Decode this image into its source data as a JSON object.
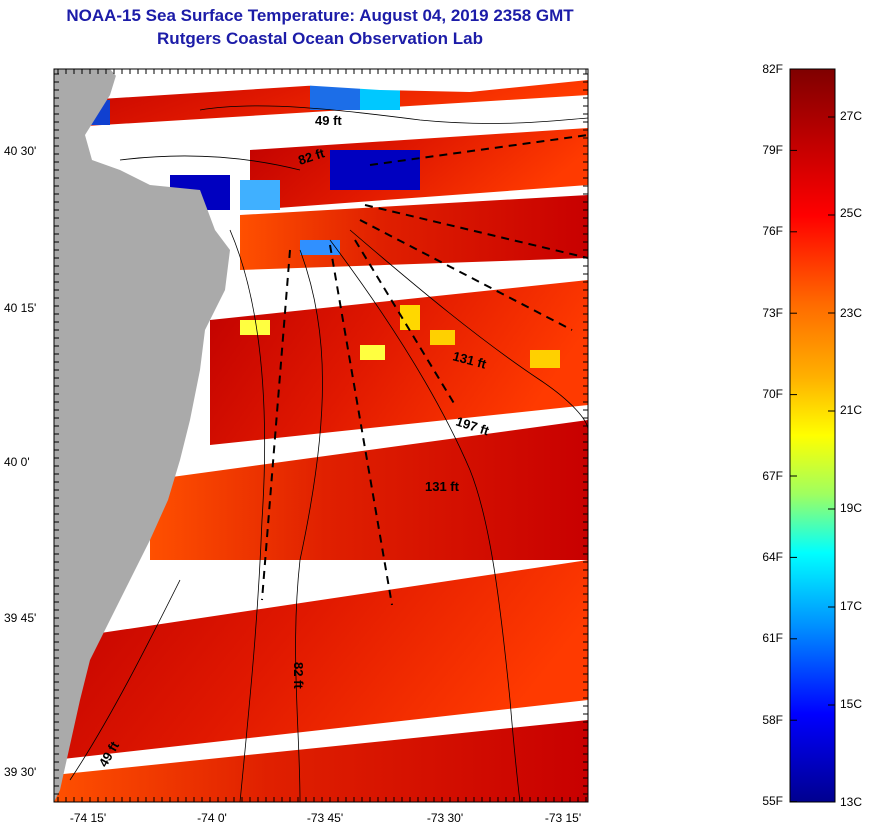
{
  "title_line1": "NOAA-15 Sea Surface Temperature:  August 04, 2019 2358 GMT",
  "title_line2": "Rutgers Coastal Ocean Observation Lab",
  "axes": {
    "lon_ticks": [
      "-74 15'",
      "-74 0'",
      "-73 45'",
      "-73 30'",
      "-73 15'"
    ],
    "lat_ticks": [
      "40 30'",
      "40 15'",
      "40 0'",
      "39 45'",
      "39 30'"
    ]
  },
  "depth_labels": [
    "49 ft",
    "82 ft",
    "131 ft",
    "197 ft",
    "131 ft",
    "82 ft",
    "49 ft"
  ],
  "colorbar": {
    "fahrenheit_labels": [
      "82F",
      "79F",
      "76F",
      "73F",
      "70F",
      "67F",
      "64F",
      "61F",
      "58F",
      "55F"
    ],
    "celsius_labels": [
      "27C",
      "25C",
      "23C",
      "21C",
      "19C",
      "17C",
      "15C",
      "13C"
    ],
    "colors": [
      "#7f0000",
      "#c00000",
      "#ff0000",
      "#ff6a00",
      "#ffb000",
      "#ffff00",
      "#9fff60",
      "#00ffff",
      "#0090ff",
      "#0000ff",
      "#00008f"
    ]
  },
  "colors": {
    "land": "#aaaaaa",
    "no_data": "#ffffff",
    "title": "#1c1ca8"
  }
}
